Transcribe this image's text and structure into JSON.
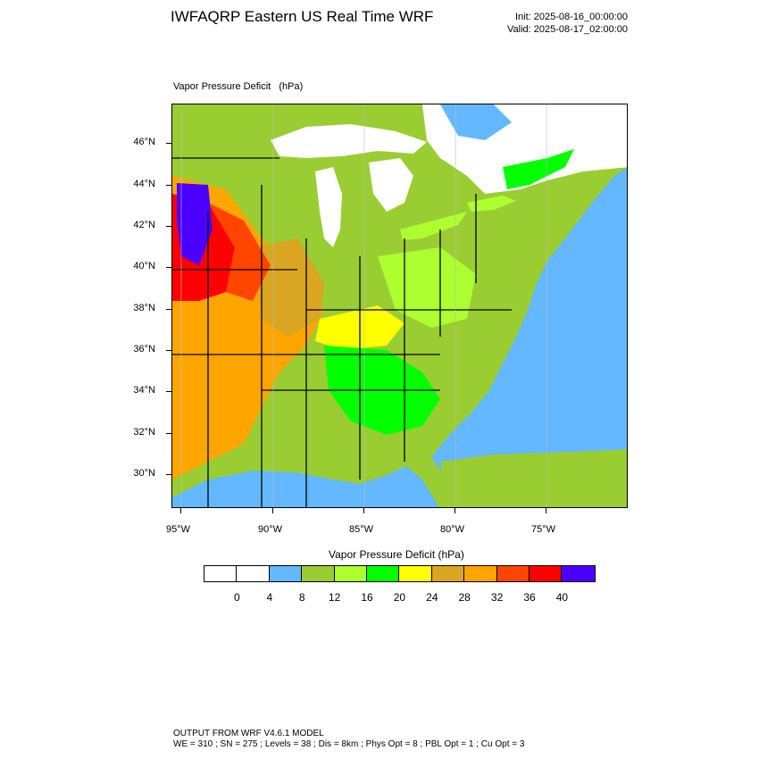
{
  "header": {
    "title": "IWFAQRP Eastern US Real Time WRF",
    "init": "Init: 2025-08-16_00:00:00",
    "valid": "Valid: 2025-08-17_02:00:00"
  },
  "map": {
    "variable_label": "Vapor Pressure Deficit   (hPa)",
    "lat_labels": [
      "46°N",
      "44°N",
      "42°N",
      "40°N",
      "38°N",
      "36°N",
      "34°N",
      "32°N",
      "30°N"
    ],
    "lon_labels": [
      "95°W",
      "90°W",
      "85°W",
      "80°W",
      "75°W"
    ],
    "colors": {
      "land_green": "#9acd32",
      "ocean": "#63b8ff",
      "border": "#000000"
    }
  },
  "colorbar": {
    "title": "Vapor Pressure Deficit  (hPa)",
    "labels": [
      "0",
      "4",
      "8",
      "12",
      "16",
      "20",
      "24",
      "28",
      "32",
      "36",
      "40"
    ],
    "colors": [
      "#ffffff",
      "#ffffff",
      "#63b8ff",
      "#9acd32",
      "#adff2f",
      "#00ff00",
      "#ffff00",
      "#daa520",
      "#ffa500",
      "#ff4500",
      "#ff0000",
      "#4b00ff"
    ]
  },
  "footer": {
    "line1": "OUTPUT FROM WRF V4.6.1 MODEL",
    "line2": "WE = 310 ; SN = 275 ; Levels = 38 ; Dis = 8km ; Phys Opt = 8 ; PBL Opt = 1 ; Cu Opt = 3"
  }
}
